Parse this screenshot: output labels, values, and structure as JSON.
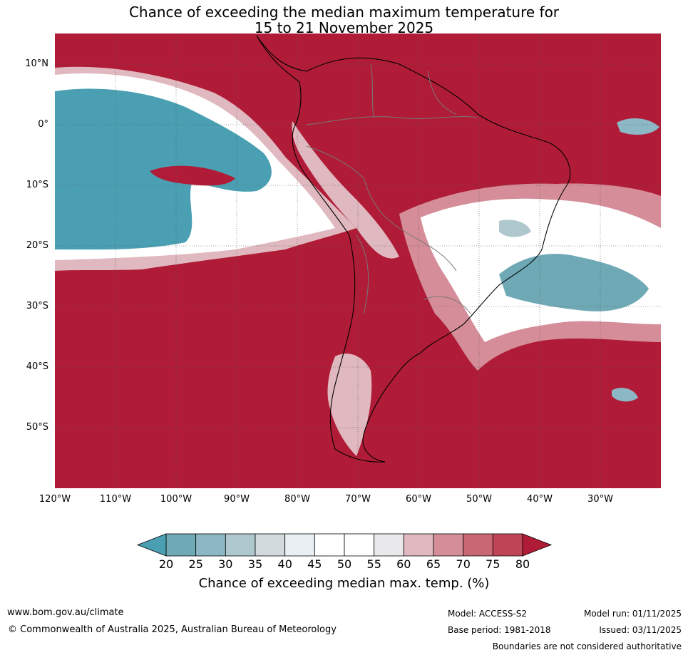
{
  "title": {
    "line1": "Chance of exceeding the median maximum temperature for",
    "line2": "15 to 21 November 2025"
  },
  "latitude_labels": [
    "10°N",
    "0°",
    "10°S",
    "20°S",
    "30°S",
    "40°S",
    "50°S"
  ],
  "longitude_labels": [
    "120°W",
    "110°W",
    "100°W",
    "90°W",
    "80°W",
    "70°W",
    "60°W",
    "50°W",
    "40°W",
    "30°W"
  ],
  "colorbar": {
    "ticks": [
      "20",
      "25",
      "30",
      "35",
      "40",
      "45",
      "50",
      "55",
      "60",
      "65",
      "70",
      "75",
      "80"
    ],
    "label": "Chance of exceeding median max. temp. (%)",
    "colors": [
      "#4aa0b2",
      "#6fa9b6",
      "#8cb8c5",
      "#aec8cd",
      "#d3dadd",
      "#e9eff2",
      "#ffffff",
      "#ffffff",
      "#e9e8ea",
      "#e0b8bf",
      "#d58e99",
      "#c96872",
      "#bf4556",
      "#b01c37"
    ]
  },
  "footer": {
    "website": "www.bom.gov.au/climate",
    "copyright": "© Commonwealth of Australia 2025, Australian Bureau of Meteorology",
    "model": "Model: ACCESS-S2",
    "base_period": "Base period: 1981-2018",
    "model_run": "Model run: 01/11/2025",
    "issued": "Issued: 03/11/2025",
    "disclaimer": "Boundaries are not considered authoritative"
  }
}
